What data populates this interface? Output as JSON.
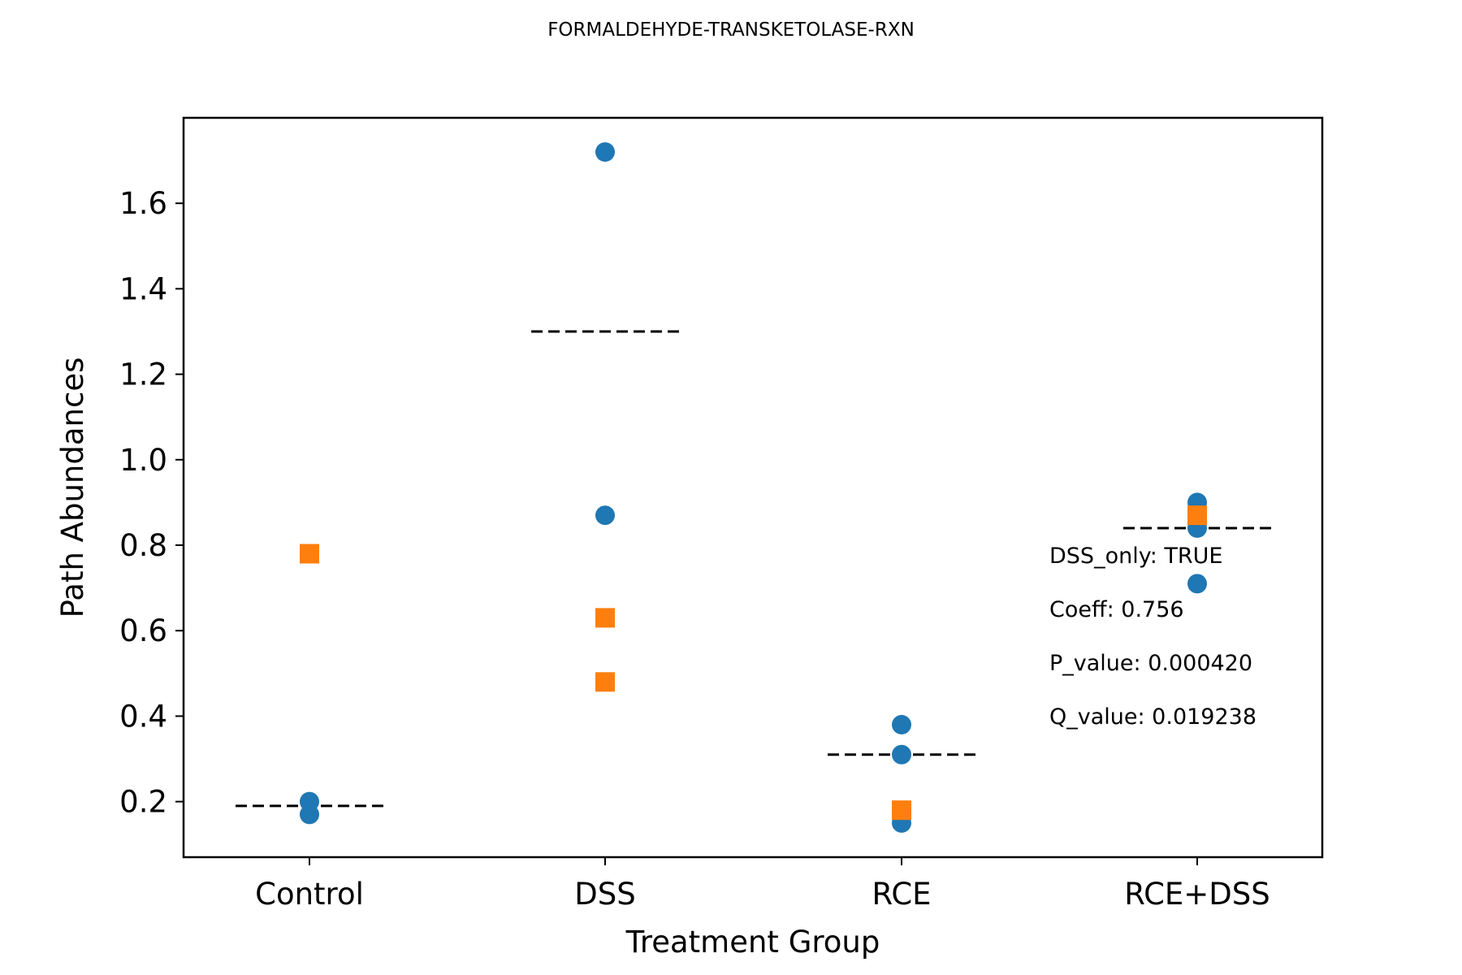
{
  "chart_data": {
    "type": "scatter",
    "title": "FORMALDEHYDE-TRANSKETOLASE-RXN",
    "xlabel": "Treatment Group",
    "ylabel": "Path Abundances",
    "categories": [
      "Control",
      "DSS",
      "RCE",
      "RCE+DSS"
    ],
    "ylim": [
      0.07,
      1.8
    ],
    "yticks": [
      "0.2",
      "0.4",
      "0.6",
      "0.8",
      "1.0",
      "1.2",
      "1.4",
      "1.6"
    ],
    "grid": false,
    "series": [
      {
        "marker": "circle",
        "color": "#1f77b4",
        "points": [
          {
            "x": "Control",
            "y": 0.2
          },
          {
            "x": "Control",
            "y": 0.17
          },
          {
            "x": "DSS",
            "y": 1.72
          },
          {
            "x": "DSS",
            "y": 0.87
          },
          {
            "x": "RCE",
            "y": 0.38
          },
          {
            "x": "RCE",
            "y": 0.31
          },
          {
            "x": "RCE",
            "y": 0.15
          },
          {
            "x": "RCE+DSS",
            "y": 0.9
          },
          {
            "x": "RCE+DSS",
            "y": 0.84
          },
          {
            "x": "RCE+DSS",
            "y": 0.71
          }
        ]
      },
      {
        "marker": "square",
        "color": "#ff7f0e",
        "points": [
          {
            "x": "Control",
            "y": 0.78
          },
          {
            "x": "DSS",
            "y": 0.63
          },
          {
            "x": "DSS",
            "y": 0.48
          },
          {
            "x": "RCE",
            "y": 0.18
          },
          {
            "x": "RCE+DSS",
            "y": 0.87
          }
        ]
      }
    ],
    "means": [
      {
        "x": "Control",
        "y": 0.19
      },
      {
        "x": "DSS",
        "y": 1.3
      },
      {
        "x": "RCE",
        "y": 0.31
      },
      {
        "x": "RCE+DSS",
        "y": 0.84
      }
    ],
    "annotations": [
      "DSS_only: TRUE",
      "Coeff: 0.756",
      "P_value: 0.000420",
      "Q_value: 0.019238"
    ]
  }
}
